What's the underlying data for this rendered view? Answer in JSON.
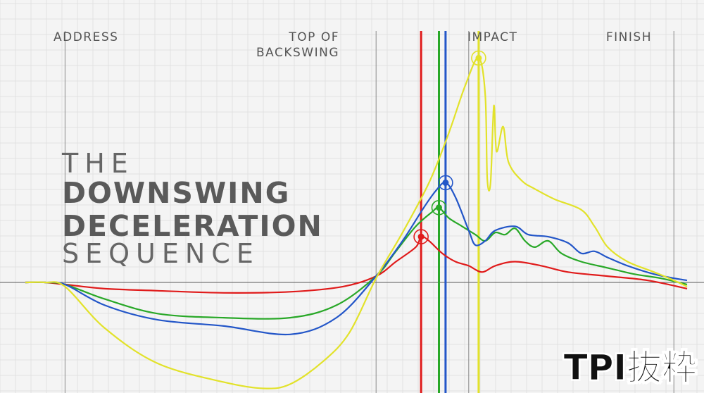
{
  "phases": {
    "address": "ADDRESS",
    "top_line1": "TOP OF",
    "top_line2": "BACKSWING",
    "impact": "IMPACT",
    "finish": "FINISH"
  },
  "title": {
    "line1": "THE",
    "line2": "DOWNSWING",
    "line3": "DECELERATION",
    "line4": "SEQUENCE"
  },
  "watermark": "TPI抜粋",
  "chart_data": {
    "type": "line",
    "x_range": [
      0,
      100
    ],
    "y_range": [
      -100,
      100
    ],
    "grid": true,
    "phase_markers_x": [
      6,
      53,
      67,
      98
    ],
    "series": [
      {
        "color": "#e01b1b",
        "peak": [
          59.8,
          22
        ],
        "points": [
          [
            0,
            0
          ],
          [
            3,
            0
          ],
          [
            6,
            -1
          ],
          [
            12,
            -3
          ],
          [
            20,
            -4
          ],
          [
            30,
            -5
          ],
          [
            40,
            -4.5
          ],
          [
            48,
            -2
          ],
          [
            53,
            3
          ],
          [
            56,
            10
          ],
          [
            59,
            17
          ],
          [
            59.8,
            22
          ],
          [
            61,
            20
          ],
          [
            63,
            14
          ],
          [
            65,
            10
          ],
          [
            67,
            8
          ],
          [
            69,
            5
          ],
          [
            71,
            8
          ],
          [
            74,
            10
          ],
          [
            78,
            8
          ],
          [
            82,
            5
          ],
          [
            88,
            3
          ],
          [
            94,
            1
          ],
          [
            100,
            -3
          ]
        ]
      },
      {
        "color": "#29a828",
        "peak": [
          62.5,
          36
        ],
        "points": [
          [
            0,
            0
          ],
          [
            3,
            0
          ],
          [
            6,
            -1
          ],
          [
            12,
            -8
          ],
          [
            20,
            -15
          ],
          [
            30,
            -17
          ],
          [
            40,
            -17
          ],
          [
            47,
            -11
          ],
          [
            53,
            3
          ],
          [
            56,
            15
          ],
          [
            59,
            27
          ],
          [
            61.5,
            34
          ],
          [
            62.5,
            36
          ],
          [
            64,
            31
          ],
          [
            66,
            27
          ],
          [
            68,
            23
          ],
          [
            69.5,
            20
          ],
          [
            71,
            24
          ],
          [
            72.5,
            23
          ],
          [
            74,
            26
          ],
          [
            75.5,
            20
          ],
          [
            77,
            17
          ],
          [
            79,
            20
          ],
          [
            81,
            14
          ],
          [
            84,
            10
          ],
          [
            88,
            7
          ],
          [
            92,
            4
          ],
          [
            96,
            2
          ],
          [
            100,
            -1
          ]
        ]
      },
      {
        "color": "#2356c8",
        "peak": [
          63.5,
          48
        ],
        "points": [
          [
            0,
            0
          ],
          [
            3,
            0
          ],
          [
            6,
            -1
          ],
          [
            12,
            -11
          ],
          [
            20,
            -18
          ],
          [
            30,
            -21
          ],
          [
            40,
            -25
          ],
          [
            47,
            -17
          ],
          [
            53,
            3
          ],
          [
            57,
            20
          ],
          [
            60,
            35
          ],
          [
            62,
            44
          ],
          [
            63.5,
            48
          ],
          [
            65,
            41
          ],
          [
            67,
            25
          ],
          [
            68,
            18
          ],
          [
            69.5,
            20
          ],
          [
            71,
            25
          ],
          [
            74,
            27
          ],
          [
            76,
            23
          ],
          [
            79,
            22
          ],
          [
            82,
            19
          ],
          [
            84,
            14
          ],
          [
            86,
            15
          ],
          [
            88,
            12
          ],
          [
            91,
            8
          ],
          [
            95,
            4
          ],
          [
            98,
            2
          ],
          [
            100,
            1
          ]
        ]
      },
      {
        "color": "#e2e22a",
        "peak": [
          68.5,
          108
        ],
        "points": [
          [
            0,
            0
          ],
          [
            3,
            0
          ],
          [
            6,
            -2
          ],
          [
            12,
            -22
          ],
          [
            20,
            -39
          ],
          [
            30,
            -48
          ],
          [
            36,
            -51
          ],
          [
            40,
            -49
          ],
          [
            45,
            -38
          ],
          [
            49,
            -24
          ],
          [
            53,
            2
          ],
          [
            57,
            24
          ],
          [
            61,
            48
          ],
          [
            64,
            72
          ],
          [
            66.5,
            95
          ],
          [
            68.5,
            108
          ],
          [
            69.5,
            90
          ],
          [
            69.8,
            50
          ],
          [
            70.3,
            48
          ],
          [
            70.8,
            85
          ],
          [
            71.2,
            63
          ],
          [
            72.2,
            75
          ],
          [
            73,
            58
          ],
          [
            75,
            49
          ],
          [
            77,
            45
          ],
          [
            80,
            40
          ],
          [
            84,
            35
          ],
          [
            86,
            27
          ],
          [
            88,
            17
          ],
          [
            91,
            10
          ],
          [
            95,
            5
          ],
          [
            98,
            1
          ],
          [
            100,
            -2
          ]
        ]
      }
    ]
  }
}
